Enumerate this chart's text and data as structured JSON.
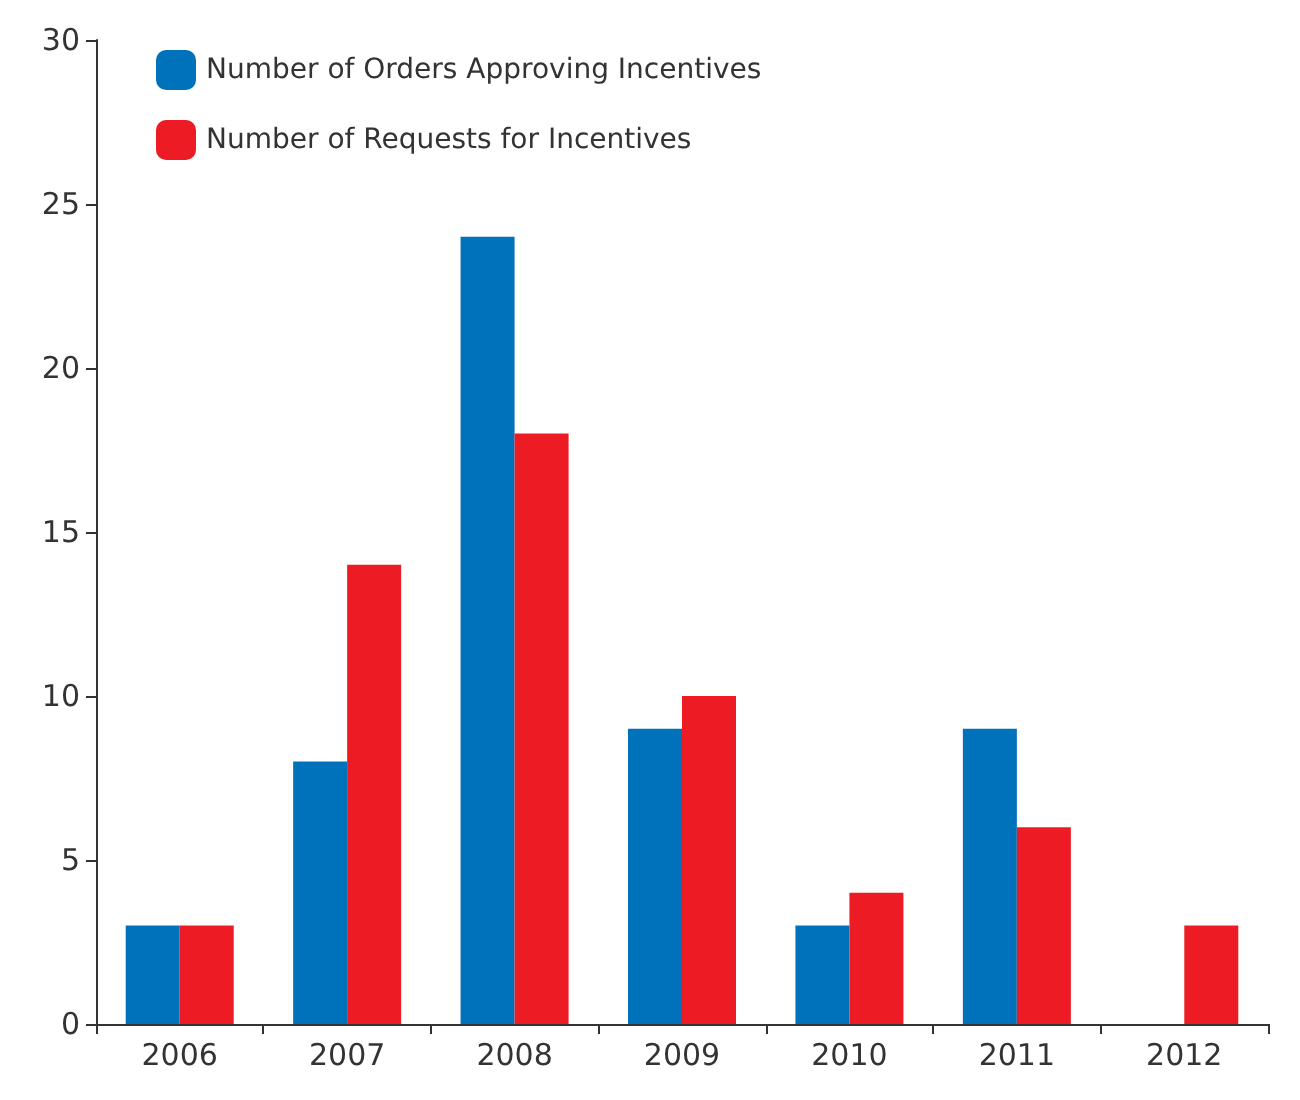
{
  "chart_data": {
    "type": "bar",
    "categories": [
      "2006",
      "2007",
      "2008",
      "2009",
      "2010",
      "2011",
      "2012"
    ],
    "series": [
      {
        "name": "Number of Orders Approving Incentives",
        "color": "#0072bc",
        "values": [
          3,
          8,
          24,
          9,
          3,
          9,
          null
        ]
      },
      {
        "name": "Number of Requests for Incentives",
        "color": "#ed1c24",
        "values": [
          3,
          14,
          18,
          10,
          4,
          6,
          3
        ]
      }
    ],
    "ylim": [
      0,
      30
    ],
    "yticks": [
      0,
      5,
      10,
      15,
      20,
      25,
      30
    ],
    "grid": false,
    "legend": "top left"
  }
}
